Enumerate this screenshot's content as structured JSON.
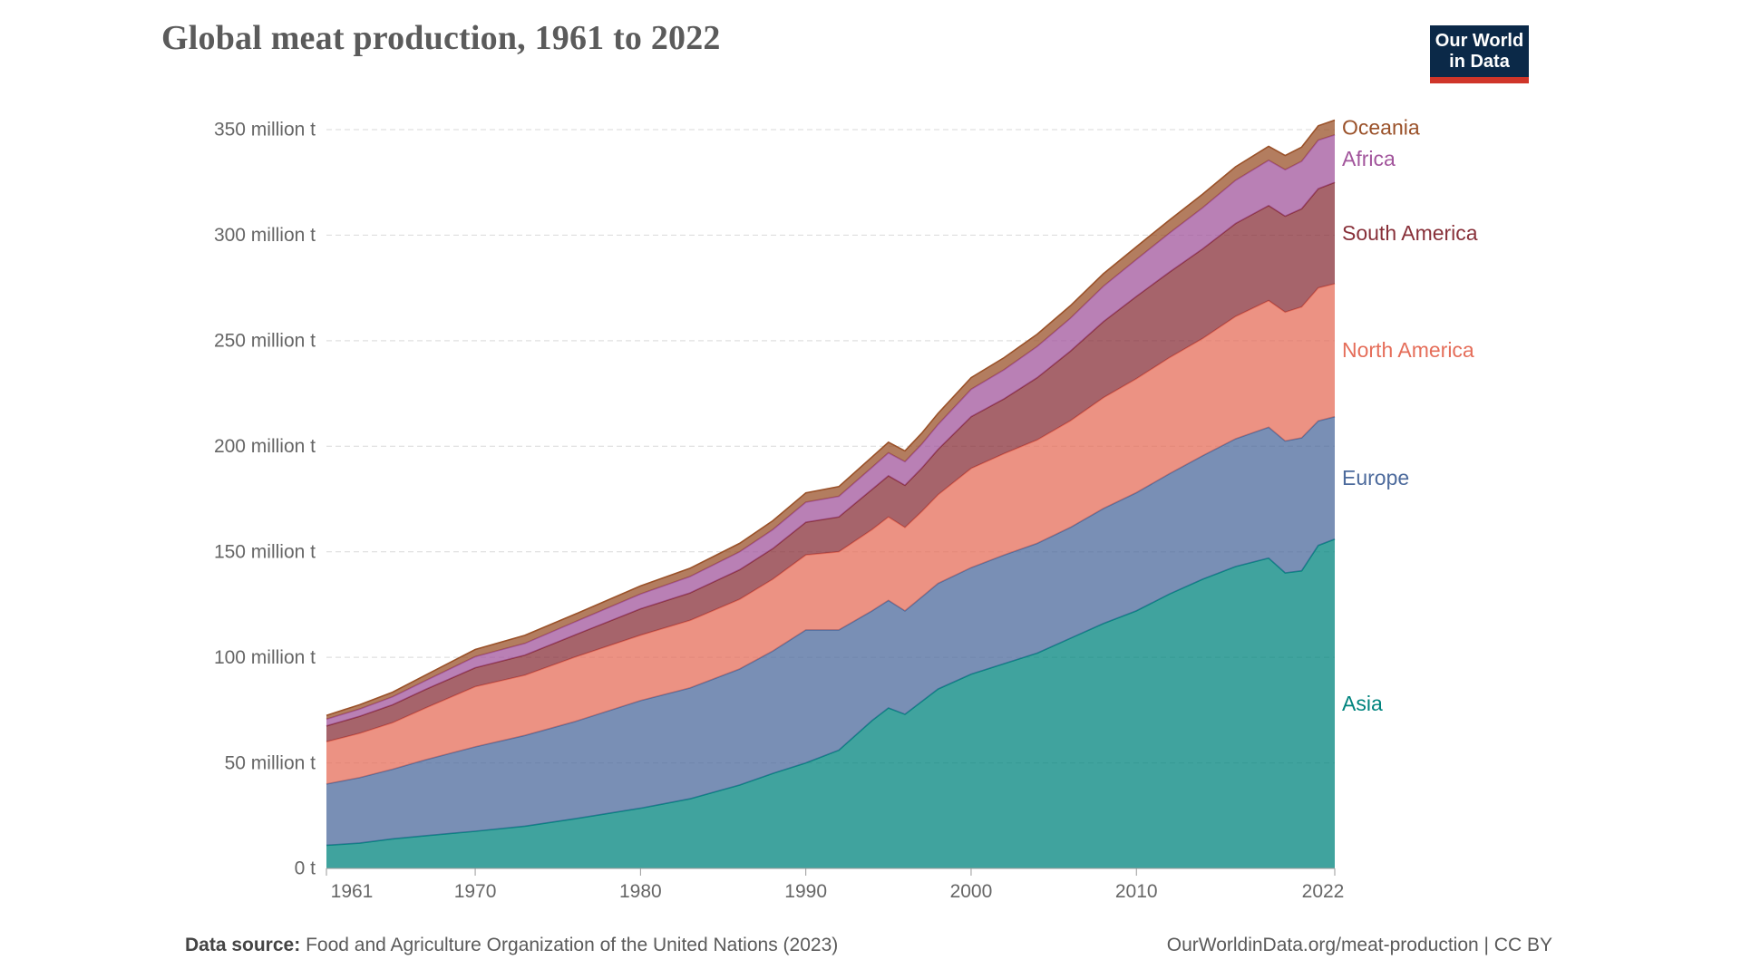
{
  "header": {
    "title": "Global meat production, 1961 to 2022"
  },
  "logo": {
    "line1": "Our World",
    "line2": "in Data",
    "bg_color": "#0b2948",
    "accent_color": "#cf3529"
  },
  "footer": {
    "source_label": "Data source:",
    "source_text": "Food and Agriculture Organization of the United Nations (2023)",
    "credit": "OurWorldinData.org/meat-production | CC BY"
  },
  "chart_data": {
    "type": "area",
    "stacked": true,
    "title": "Global meat production, 1961 to 2022",
    "xlabel": "",
    "ylabel": "",
    "unit_label": "million t",
    "xlim": [
      1961,
      2022
    ],
    "ylim": [
      0,
      350
    ],
    "grid": "horizontal-dashed",
    "legend_position": "right-edge-labels",
    "legend_order_top_to_bottom": [
      "Oceania",
      "Africa",
      "South America",
      "North America",
      "Europe",
      "Asia"
    ],
    "x_ticks": [
      1961,
      1970,
      1980,
      1990,
      2000,
      2010,
      2022
    ],
    "y_ticks": [
      {
        "value": 0,
        "label": "0 t"
      },
      {
        "value": 50,
        "label": "50 million t"
      },
      {
        "value": 100,
        "label": "100 million t"
      },
      {
        "value": 150,
        "label": "150 million t"
      },
      {
        "value": 200,
        "label": "200 million t"
      },
      {
        "value": 250,
        "label": "250 million t"
      },
      {
        "value": 300,
        "label": "300 million t"
      },
      {
        "value": 350,
        "label": "350 million t"
      }
    ],
    "x": [
      1961,
      1963,
      1965,
      1967,
      1970,
      1973,
      1976,
      1980,
      1983,
      1986,
      1988,
      1990,
      1992,
      1994,
      1995,
      1996,
      1997,
      1998,
      2000,
      2002,
      2004,
      2006,
      2008,
      2010,
      2012,
      2014,
      2016,
      2018,
      2019,
      2020,
      2021,
      2022
    ],
    "series": [
      {
        "name": "Asia",
        "color": "#00847e",
        "values": [
          11,
          12,
          14,
          15.5,
          17.6,
          20,
          23.5,
          28.5,
          33,
          39.5,
          45,
          50,
          56,
          70,
          76,
          73,
          79,
          85,
          92,
          97,
          102,
          109,
          116,
          122,
          130,
          137,
          143,
          147,
          140,
          141,
          153,
          156
        ]
      },
      {
        "name": "Europe",
        "color": "#4c6a9c",
        "values": [
          29,
          31,
          33,
          36,
          40,
          43,
          46,
          51,
          52.5,
          55,
          58,
          63,
          57,
          52,
          51,
          49,
          49.5,
          50,
          50.5,
          51.5,
          52,
          52.5,
          54.5,
          56,
          57,
          58.5,
          60.5,
          62,
          62.5,
          63,
          59,
          58
        ]
      },
      {
        "name": "North America",
        "color": "#e56e5a",
        "values": [
          20,
          21,
          22,
          24.5,
          28.5,
          28.5,
          30.5,
          31,
          32,
          33,
          34,
          35.5,
          37,
          38.5,
          39.5,
          39.5,
          40.5,
          42,
          47,
          48,
          49,
          50.5,
          52.5,
          54,
          55,
          55.5,
          58,
          60,
          61,
          62,
          63,
          63
        ]
      },
      {
        "name": "South America",
        "color": "#883039",
        "values": [
          7.5,
          8,
          8.5,
          8.8,
          9,
          9.5,
          10.5,
          12.5,
          13,
          14,
          14.5,
          15.5,
          16.5,
          19,
          19.5,
          20,
          20.5,
          21.5,
          24.5,
          26,
          29.5,
          33,
          36,
          39,
          40.5,
          42.5,
          44,
          45,
          45.5,
          46.5,
          47,
          48
        ]
      },
      {
        "name": "Africa",
        "color": "#a2559c",
        "values": [
          3.2,
          3.5,
          3.8,
          4.2,
          5.2,
          5.6,
          6.2,
          7,
          7.8,
          8.5,
          9,
          9.5,
          9.8,
          10.5,
          10.9,
          11.2,
          11.4,
          11.8,
          13,
          13.8,
          14.8,
          15.6,
          16.8,
          17.5,
          18.5,
          19.5,
          20.5,
          21.5,
          22,
          22.5,
          23,
          22.5
        ]
      },
      {
        "name": "Oceania",
        "color": "#9a5129",
        "values": [
          1.8,
          2,
          2.2,
          2.6,
          3.4,
          3.8,
          3.6,
          3.8,
          3.9,
          4,
          4.2,
          4.4,
          4.6,
          4.9,
          5,
          5.1,
          5.2,
          5.3,
          5.5,
          5.7,
          5.8,
          5.9,
          5.9,
          6,
          6.2,
          6.4,
          6.4,
          6.6,
          6.7,
          6.7,
          6.8,
          7
        ]
      }
    ]
  }
}
